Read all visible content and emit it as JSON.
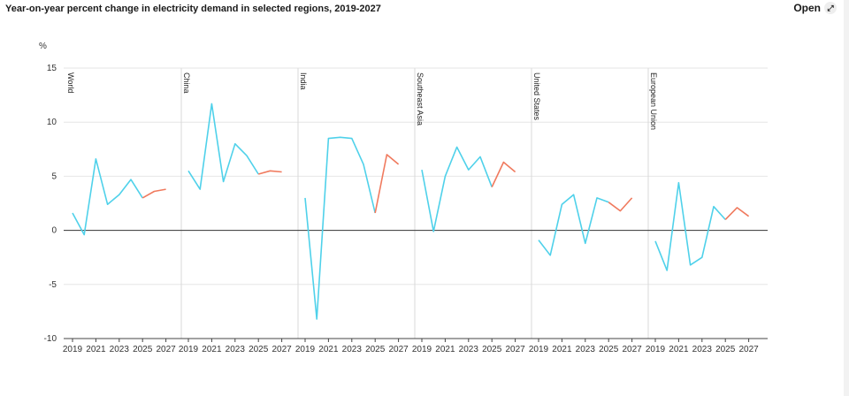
{
  "header": {
    "title": "Year-on-year percent change in electricity demand in selected regions, 2019-2027",
    "open_label": "Open",
    "open_icon": "expand-icon"
  },
  "colors": {
    "historical": "#4fd1ea",
    "forecast": "#f07a5e",
    "zero_line": "#333333",
    "grid": "#e6e6e6",
    "divider": "#d9d9d9"
  },
  "chart_data": {
    "type": "line",
    "title": "Year-on-year percent change in electricity demand in selected regions, 2019-2027",
    "ylabel": "%",
    "ylim": [
      -10,
      15
    ],
    "yticks": [
      15,
      10,
      5,
      0,
      -5,
      -10
    ],
    "x": [
      2019,
      2020,
      2021,
      2022,
      2023,
      2024,
      2025,
      2026,
      2027
    ],
    "xtick_labels": [
      "2019",
      "2021",
      "2023",
      "2025",
      "2027"
    ],
    "grid": true,
    "forecast_start": 2025,
    "panels": [
      {
        "name": "World",
        "values": [
          1.6,
          -0.4,
          6.6,
          2.4,
          3.3,
          4.7,
          3.0,
          3.6,
          3.8
        ]
      },
      {
        "name": "China",
        "values": [
          5.5,
          3.8,
          11.7,
          4.5,
          8.0,
          6.9,
          5.2,
          5.5,
          5.4
        ]
      },
      {
        "name": "India",
        "values": [
          3.0,
          -8.2,
          8.5,
          8.6,
          8.5,
          6.1,
          1.6,
          7.0,
          6.1
        ]
      },
      {
        "name": "Southeast Asia",
        "values": [
          5.6,
          -0.1,
          5.0,
          7.7,
          5.6,
          6.8,
          4.0,
          6.3,
          5.4
        ]
      },
      {
        "name": "United States",
        "values": [
          -0.9,
          -2.3,
          2.4,
          3.3,
          -1.2,
          3.0,
          2.6,
          1.8,
          3.0
        ]
      },
      {
        "name": "European Union",
        "values": [
          -1.0,
          -3.7,
          4.4,
          -3.2,
          -2.5,
          2.2,
          1.0,
          2.1,
          1.3
        ]
      }
    ]
  }
}
